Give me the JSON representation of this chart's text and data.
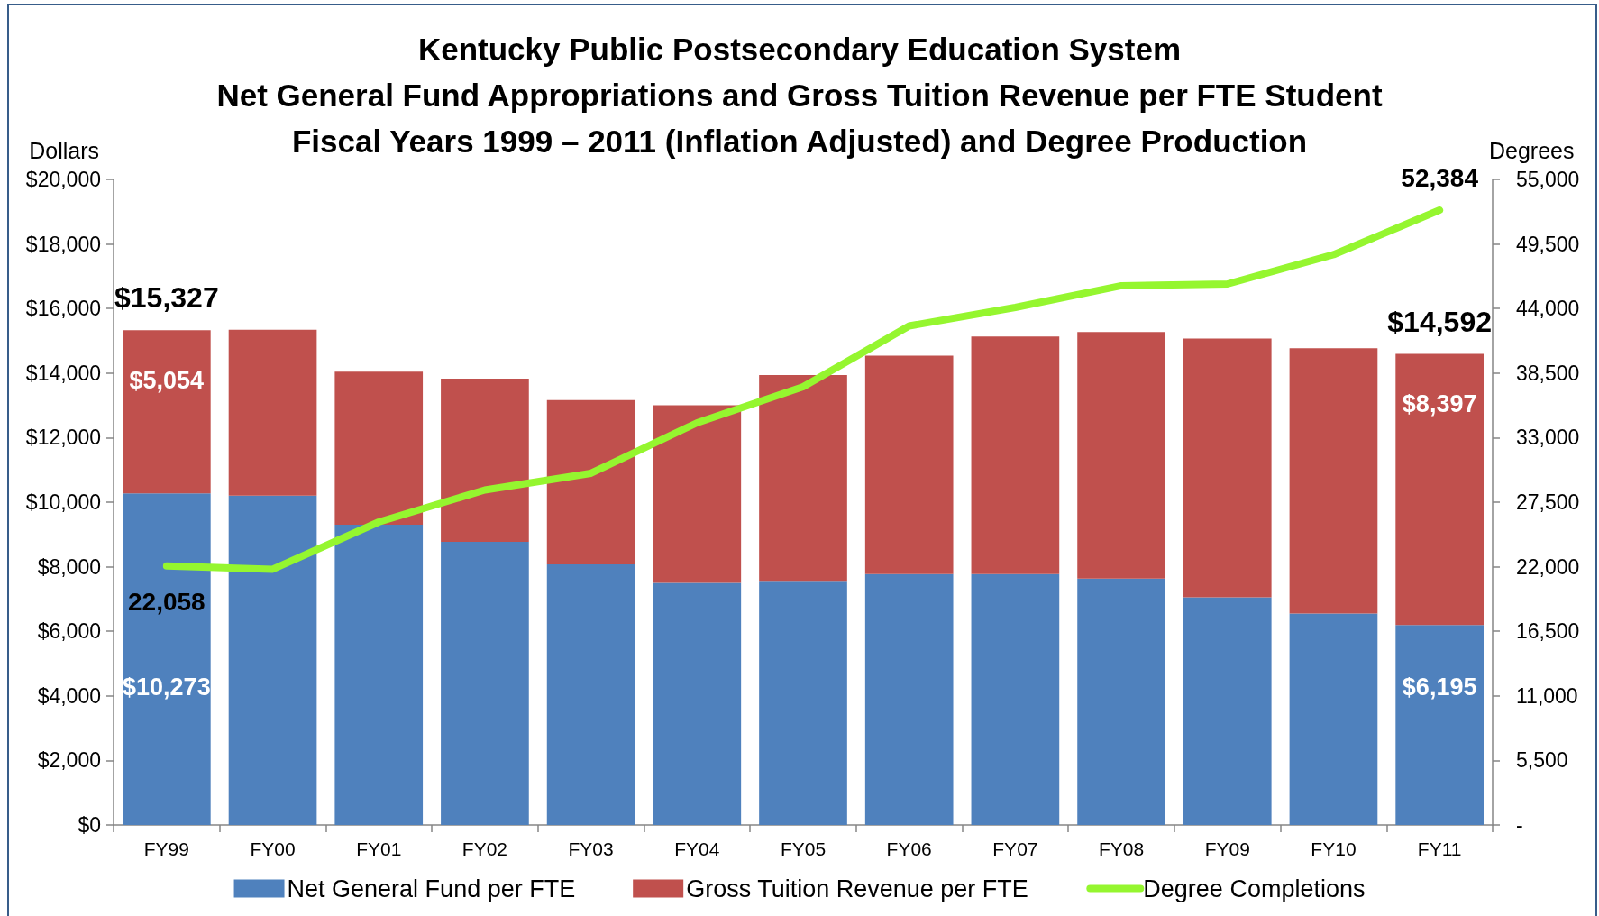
{
  "chart_data": {
    "type": "bar",
    "title": "Kentucky Public Postsecondary Education System\nNet General Fund Appropriations and Gross Tuition Revenue per FTE Student\nFiscal Years 1999 – 2011 (Inflation Adjusted) and Degree Production",
    "ylabel": "Dollars",
    "y2label": "Degrees",
    "categories": [
      "FY99",
      "FY00",
      "FY01",
      "FY02",
      "FY03",
      "FY04",
      "FY05",
      "FY06",
      "FY07",
      "FY08",
      "FY09",
      "FY10",
      "FY11"
    ],
    "stacked": true,
    "series": [
      {
        "name": "Net General Fund per FTE",
        "color": "#4f81bd",
        "values": [
          10273,
          10200,
          9300,
          8770,
          8070,
          7500,
          7560,
          7770,
          7770,
          7630,
          7050,
          6550,
          6195
        ],
        "value_labels": [
          "$10,273",
          null,
          null,
          null,
          null,
          null,
          null,
          null,
          null,
          null,
          null,
          null,
          "$6,195"
        ]
      },
      {
        "name": "Gross Tuition Revenue per FTE",
        "color": "#c0504d",
        "values": [
          5054,
          5140,
          4740,
          5060,
          5090,
          5500,
          6380,
          6770,
          7360,
          7640,
          8020,
          8220,
          8397
        ],
        "value_labels": [
          "$5,054",
          null,
          null,
          null,
          null,
          null,
          null,
          null,
          null,
          null,
          null,
          null,
          "$8,397"
        ]
      },
      {
        "name": "Degree Completions",
        "type": "line",
        "axis": "y2",
        "color": "#95f62f",
        "values": [
          22058,
          21780,
          25810,
          28540,
          29960,
          34260,
          37330,
          42520,
          44090,
          45940,
          46090,
          48590,
          52384
        ],
        "value_labels": [
          "22,058",
          null,
          null,
          null,
          null,
          null,
          null,
          null,
          null,
          null,
          null,
          null,
          "52,384"
        ]
      }
    ],
    "totals": [
      "$15,327",
      null,
      null,
      null,
      null,
      null,
      null,
      null,
      null,
      null,
      null,
      null,
      "$14,592"
    ],
    "ylim": [
      0,
      20000
    ],
    "yticks": [
      {
        "value": 0,
        "label": "$0"
      },
      {
        "value": 2000,
        "label": "$2,000"
      },
      {
        "value": 4000,
        "label": "$4,000"
      },
      {
        "value": 6000,
        "label": "$6,000"
      },
      {
        "value": 8000,
        "label": "$8,000"
      },
      {
        "value": 10000,
        "label": "$10,000"
      },
      {
        "value": 12000,
        "label": "$12,000"
      },
      {
        "value": 14000,
        "label": "$14,000"
      },
      {
        "value": 16000,
        "label": "$16,000"
      },
      {
        "value": 18000,
        "label": "$18,000"
      },
      {
        "value": 20000,
        "label": "$20,000"
      }
    ],
    "y2lim": [
      0,
      55000
    ],
    "y2ticks": [
      {
        "value": 0,
        "label": "-"
      },
      {
        "value": 5500,
        "label": "5,500"
      },
      {
        "value": 11000,
        "label": "11,000"
      },
      {
        "value": 16500,
        "label": "16,500"
      },
      {
        "value": 22000,
        "label": "22,000"
      },
      {
        "value": 27500,
        "label": "27,500"
      },
      {
        "value": 33000,
        "label": "33,000"
      },
      {
        "value": 38500,
        "label": "38,500"
      },
      {
        "value": 44000,
        "label": "44,000"
      },
      {
        "value": 49500,
        "label": "49,500"
      },
      {
        "value": 55000,
        "label": "55,000"
      }
    ],
    "legend": "bottom",
    "marker": "none"
  }
}
